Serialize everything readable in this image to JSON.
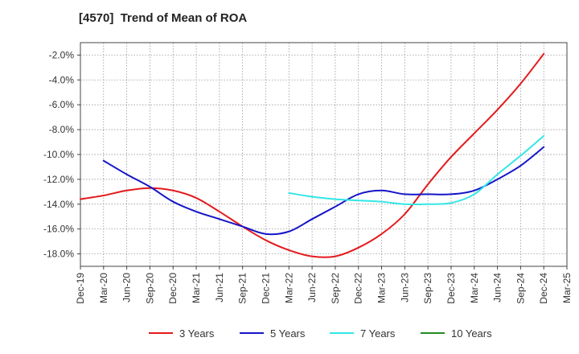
{
  "chart_data": {
    "type": "line",
    "title": "[4570]  Trend of Mean of ROA",
    "xlabel": "",
    "ylabel": "",
    "x_categories": [
      "Dec-19",
      "Mar-20",
      "Jun-20",
      "Sep-20",
      "Dec-20",
      "Mar-21",
      "Jun-21",
      "Sep-21",
      "Dec-21",
      "Mar-22",
      "Jun-22",
      "Sep-22",
      "Dec-22",
      "Mar-23",
      "Jun-23",
      "Sep-23",
      "Dec-23",
      "Mar-24",
      "Jun-24",
      "Sep-24",
      "Dec-24",
      "Mar-25"
    ],
    "ylim": [
      -19.0,
      -1.0
    ],
    "y_ticks": [
      -2.0,
      -4.0,
      -6.0,
      -8.0,
      -10.0,
      -12.0,
      -14.0,
      -16.0,
      -18.0
    ],
    "y_tick_labels": [
      "-2.0%",
      "-4.0%",
      "-6.0%",
      "-8.0%",
      "-10.0%",
      "-12.0%",
      "-14.0%",
      "-16.0%",
      "-18.0%"
    ],
    "grid": true,
    "legend_position": "bottom",
    "series": [
      {
        "name": "3 Years",
        "color": "#e31a1c",
        "points": [
          [
            "Dec-19",
            -13.6
          ],
          [
            "Mar-20",
            -13.3
          ],
          [
            "Jun-20",
            -12.9
          ],
          [
            "Sep-20",
            -12.7
          ],
          [
            "Dec-20",
            -12.9
          ],
          [
            "Mar-21",
            -13.5
          ],
          [
            "Jun-21",
            -14.6
          ],
          [
            "Sep-21",
            -15.8
          ],
          [
            "Dec-21",
            -16.9
          ],
          [
            "Mar-22",
            -17.7
          ],
          [
            "Jun-22",
            -18.2
          ],
          [
            "Sep-22",
            -18.2
          ],
          [
            "Dec-22",
            -17.5
          ],
          [
            "Mar-23",
            -16.4
          ],
          [
            "Jun-23",
            -14.8
          ],
          [
            "Sep-23",
            -12.4
          ],
          [
            "Dec-23",
            -10.2
          ],
          [
            "Mar-24",
            -8.3
          ],
          [
            "Jun-24",
            -6.4
          ],
          [
            "Sep-24",
            -4.3
          ],
          [
            "Dec-24",
            -1.9
          ]
        ]
      },
      {
        "name": "5 Years",
        "color": "#1515c8",
        "points": [
          [
            "Mar-20",
            -10.5
          ],
          [
            "Jun-20",
            -11.6
          ],
          [
            "Sep-20",
            -12.6
          ],
          [
            "Dec-20",
            -13.8
          ],
          [
            "Mar-21",
            -14.6
          ],
          [
            "Jun-21",
            -15.2
          ],
          [
            "Sep-21",
            -15.8
          ],
          [
            "Dec-21",
            -16.4
          ],
          [
            "Mar-22",
            -16.2
          ],
          [
            "Jun-22",
            -15.2
          ],
          [
            "Sep-22",
            -14.2
          ],
          [
            "Dec-22",
            -13.2
          ],
          [
            "Mar-23",
            -12.9
          ],
          [
            "Jun-23",
            -13.2
          ],
          [
            "Sep-23",
            -13.2
          ],
          [
            "Dec-23",
            -13.2
          ],
          [
            "Mar-24",
            -12.9
          ],
          [
            "Jun-24",
            -12.0
          ],
          [
            "Sep-24",
            -10.9
          ],
          [
            "Dec-24",
            -9.4
          ]
        ]
      },
      {
        "name": "7 Years",
        "color": "#33e6e6",
        "points": [
          [
            "Mar-22",
            -13.1
          ],
          [
            "Jun-22",
            -13.4
          ],
          [
            "Sep-22",
            -13.6
          ],
          [
            "Dec-22",
            -13.7
          ],
          [
            "Mar-23",
            -13.8
          ],
          [
            "Jun-23",
            -14.0
          ],
          [
            "Sep-23",
            -14.0
          ],
          [
            "Dec-23",
            -13.9
          ],
          [
            "Mar-24",
            -13.2
          ],
          [
            "Jun-24",
            -11.6
          ],
          [
            "Sep-24",
            -10.1
          ],
          [
            "Dec-24",
            -8.5
          ]
        ]
      },
      {
        "name": "10 Years",
        "color": "#228b22",
        "points": []
      }
    ]
  }
}
